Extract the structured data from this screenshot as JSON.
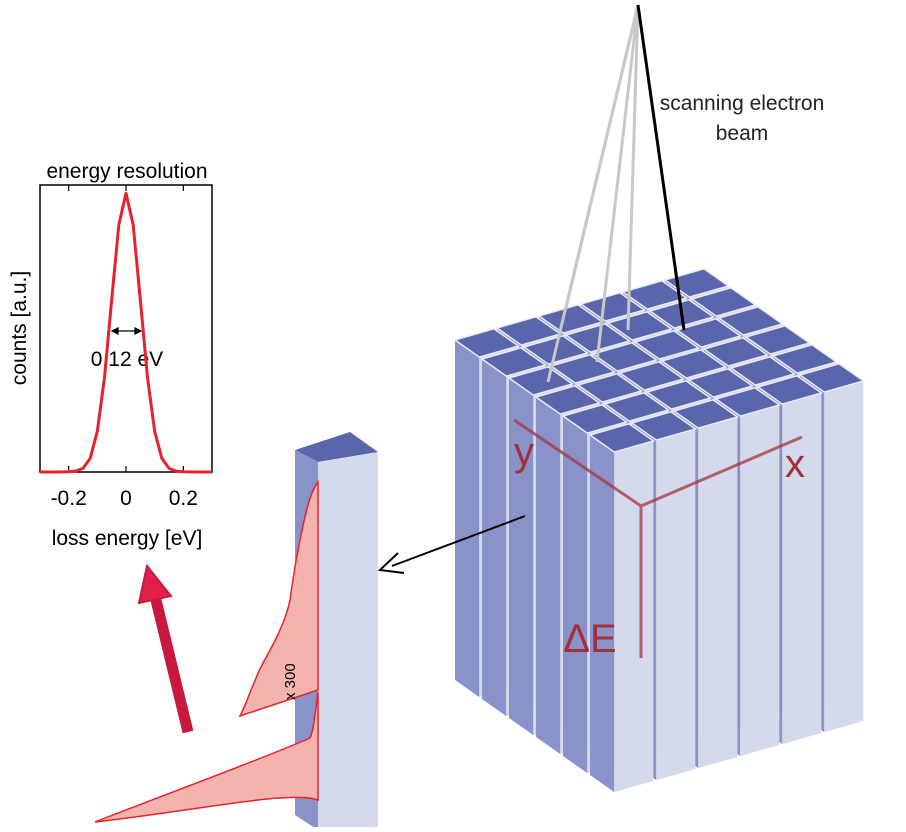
{
  "chart_data": {
    "type": "line",
    "title": "energy resolution",
    "xlabel": "loss energy [eV]",
    "ylabel": "counts [a.u.]",
    "annotation": "0.12 eV",
    "x": [
      -0.3,
      -0.25,
      -0.2,
      -0.175,
      -0.15,
      -0.125,
      -0.1,
      -0.075,
      -0.05,
      -0.025,
      0,
      0.025,
      0.05,
      0.075,
      0.1,
      0.125,
      0.15,
      0.175,
      0.2,
      0.25,
      0.3
    ],
    "values": [
      0,
      0,
      0.001,
      0.003,
      0.013,
      0.049,
      0.146,
      0.339,
      0.618,
      0.887,
      1,
      0.887,
      0.618,
      0.339,
      0.146,
      0.049,
      0.013,
      0.003,
      0.001,
      0,
      0
    ],
    "color": "#e8212e",
    "xlim": [
      -0.3,
      0.3
    ],
    "ylim": [
      0,
      1.03
    ],
    "xticks": [
      -0.2,
      0,
      0.2
    ]
  },
  "diagram": {
    "beam_label": [
      "scanning electron",
      "beam"
    ],
    "axis_x": "x",
    "axis_y": "y",
    "axis_energy": "ΔE",
    "scale_label": "x 300"
  }
}
